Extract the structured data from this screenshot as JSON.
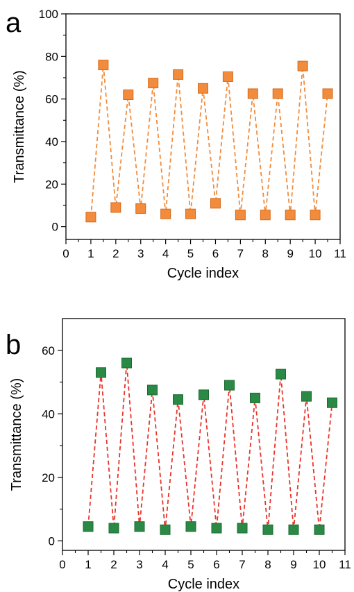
{
  "chart_data": [
    {
      "panel": "a",
      "type": "line",
      "xlabel": "Cycle index",
      "ylabel": "Transmittance (%)",
      "xlim": [
        0,
        11
      ],
      "ylim": [
        -6,
        100
      ],
      "xticks": [
        0,
        1,
        2,
        3,
        4,
        5,
        6,
        7,
        8,
        9,
        10,
        11
      ],
      "yticks": [
        0,
        20,
        40,
        60,
        80,
        100
      ],
      "grid": false,
      "line_color": "#f28c3c",
      "marker_color": "#f28c3c",
      "marker_edge": "#d46a1a",
      "series": [
        {
          "name": "",
          "x": [
            1,
            1.5,
            2,
            2.5,
            3,
            3.5,
            4,
            4.5,
            5,
            5.5,
            6,
            6.5,
            7,
            7.5,
            8,
            8.5,
            9,
            9.5,
            10,
            10.5
          ],
          "y": [
            4.5,
            76,
            9,
            62,
            8.5,
            67.5,
            6,
            71.5,
            6,
            65,
            11,
            70.5,
            5.5,
            62.5,
            5.5,
            62.5,
            5.5,
            75.5,
            5.5,
            62.5
          ]
        }
      ]
    },
    {
      "panel": "b",
      "type": "line",
      "xlabel": "Cycle index",
      "ylabel": "Transmittance (%)",
      "xlim": [
        0,
        11
      ],
      "ylim": [
        -3,
        70
      ],
      "xticks": [
        0,
        1,
        2,
        3,
        4,
        5,
        6,
        7,
        8,
        9,
        10,
        11
      ],
      "yticks": [
        0,
        20,
        40,
        60
      ],
      "grid": false,
      "line_color": "#e8342a",
      "marker_color": "#2a8a45",
      "marker_edge": "#1a6a30",
      "series": [
        {
          "name": "",
          "x": [
            1,
            1.5,
            2,
            2.5,
            3,
            3.5,
            4,
            4.5,
            5,
            5.5,
            6,
            6.5,
            7,
            7.5,
            8,
            8.5,
            9,
            9.5,
            10,
            10.5
          ],
          "y": [
            4.5,
            53,
            4,
            56,
            4.5,
            47.5,
            3.5,
            44.5,
            4.5,
            46,
            4,
            49,
            4,
            45,
            3.5,
            52.5,
            3.5,
            45.5,
            3.5,
            43.5
          ]
        }
      ]
    }
  ]
}
